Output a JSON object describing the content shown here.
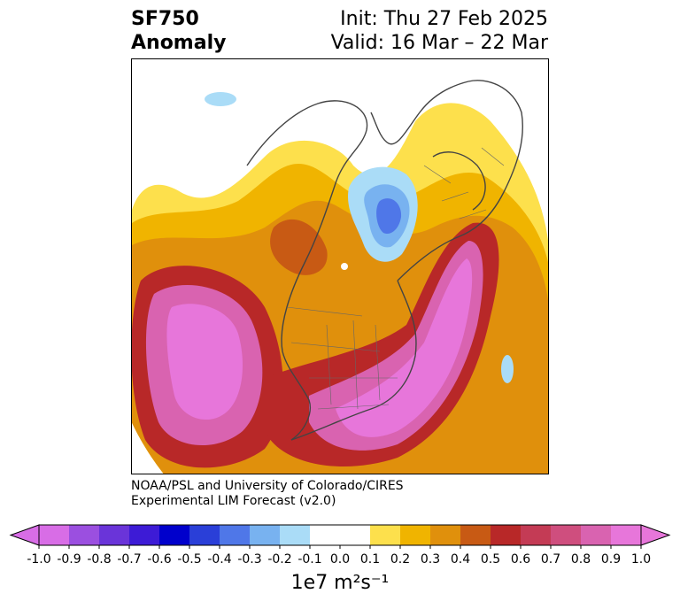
{
  "header": {
    "variable": "SF750",
    "kind": "Anomaly",
    "init": "Init: Thu 27 Feb 2025",
    "valid": "Valid: 16 Mar – 22 Mar"
  },
  "credit": {
    "line1": "NOAA/PSL and University of Colorado/CIRES",
    "line2": "Experimental LIM Forecast (v2.0)"
  },
  "colorbar": {
    "ticks": [
      "-1.0",
      "-0.9",
      "-0.8",
      "-0.7",
      "-0.6",
      "-0.5",
      "-0.4",
      "-0.3",
      "-0.2",
      "-0.1",
      "0.0",
      "0.1",
      "0.2",
      "0.3",
      "0.4",
      "0.5",
      "0.6",
      "0.7",
      "0.8",
      "0.9",
      "1.0"
    ],
    "colors": [
      "#d86de6",
      "#9b4fe0",
      "#6a34d9",
      "#3d1bd6",
      "#0000cc",
      "#2a3fd8",
      "#4f77e8",
      "#78b2f0",
      "#aadcf7",
      "#ffffff",
      "#ffffff",
      "#fde04c",
      "#f0b400",
      "#e0900c",
      "#c85a14",
      "#b82828",
      "#c43b55",
      "#cf4e7e",
      "#d963b0",
      "#e776da"
    ],
    "units": "1e7 m²s⁻¹"
  }
}
